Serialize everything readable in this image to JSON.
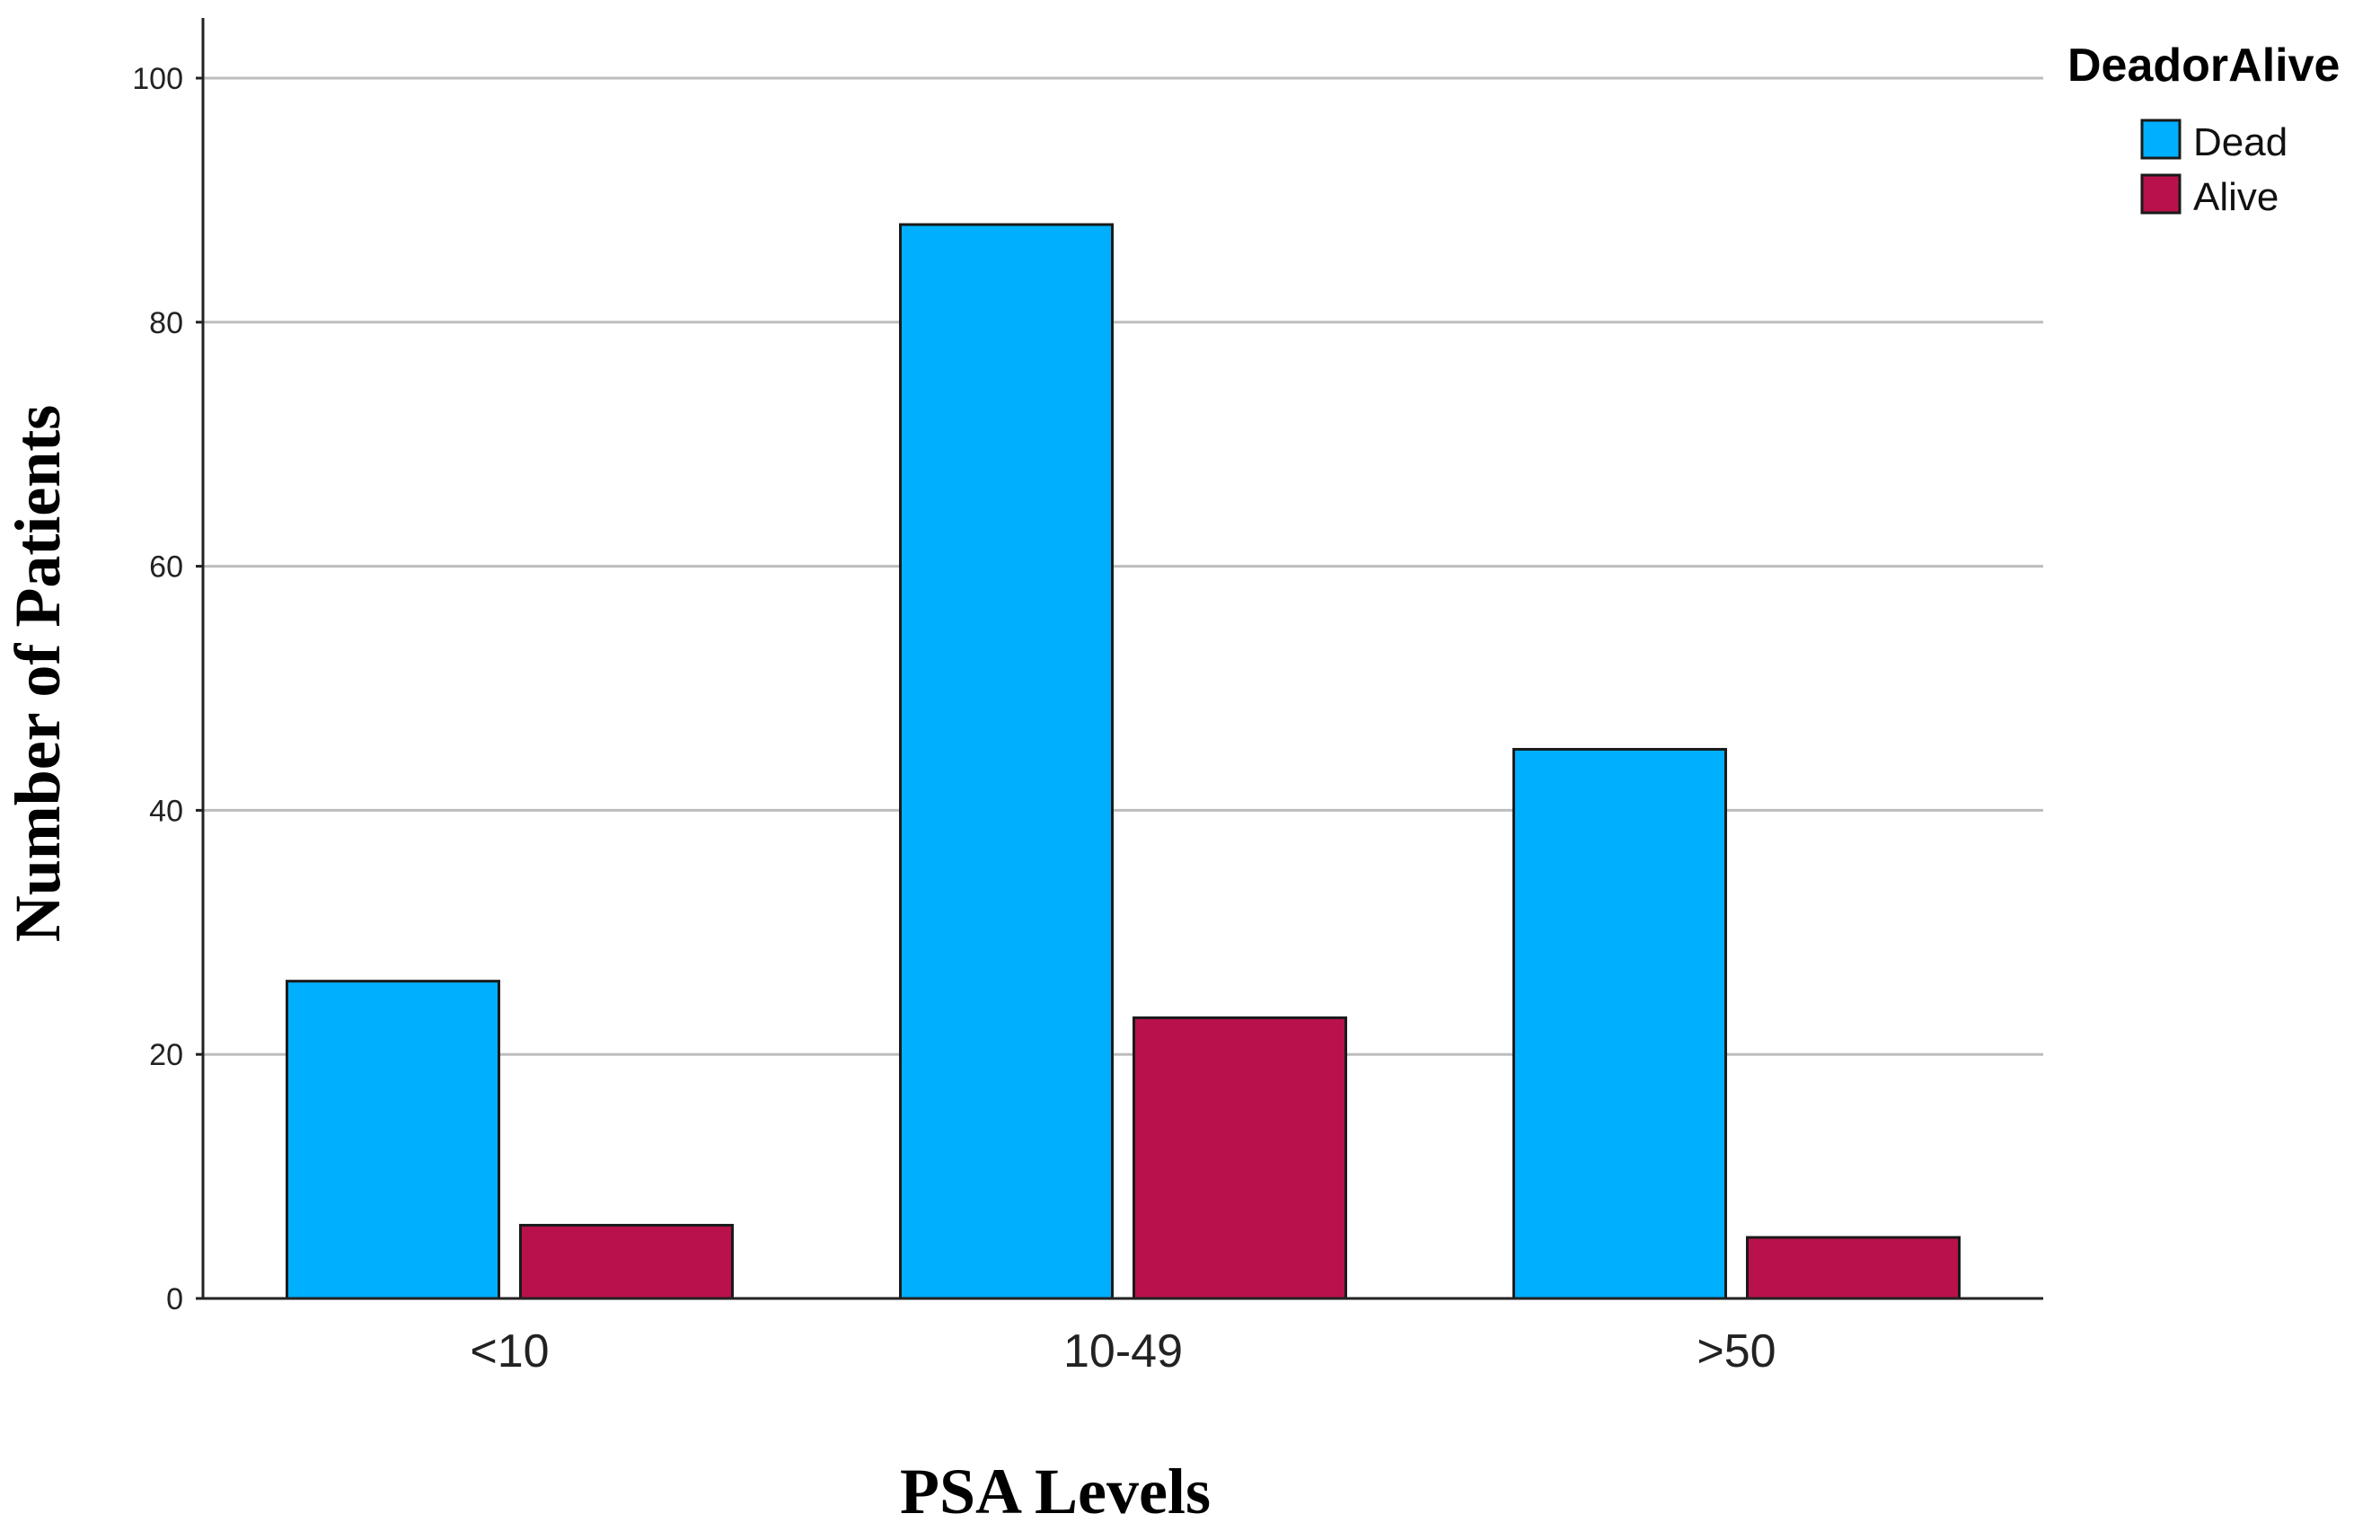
{
  "chart_data": {
    "type": "bar",
    "categories": [
      "<10",
      "10-49",
      ">50"
    ],
    "series": [
      {
        "name": "Dead",
        "color": "#00B0FF",
        "values": [
          26,
          88,
          45
        ]
      },
      {
        "name": "Alive",
        "color": "#B9114B",
        "values": [
          6,
          23,
          5
        ]
      }
    ],
    "xlabel": "PSA Levels",
    "ylabel": "Number of Patients",
    "ylim": [
      0,
      105
    ],
    "yticks": [
      0,
      20,
      40,
      60,
      80,
      100
    ],
    "grid": "horizontal",
    "legend_title": "DeadorAlive",
    "legend_position": "top-right"
  }
}
